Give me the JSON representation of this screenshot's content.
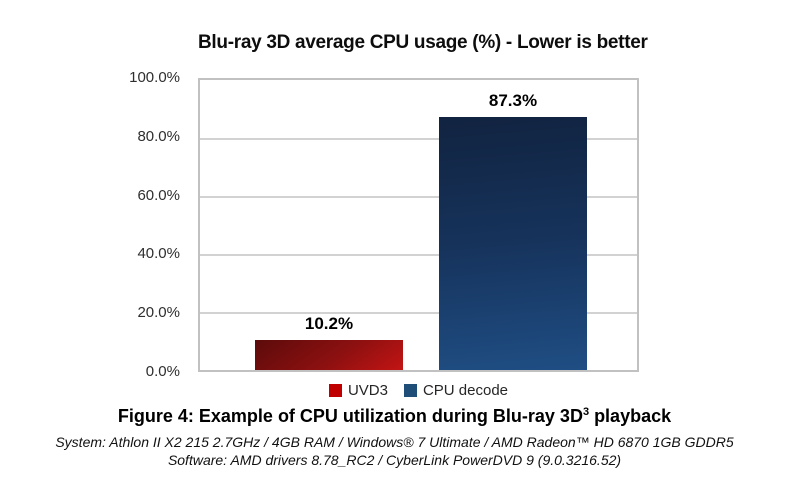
{
  "chart_data": {
    "type": "bar",
    "title": "Blu-ray 3D average CPU usage (%) - Lower is better",
    "categories": [
      "UVD3",
      "CPU decode"
    ],
    "values": [
      10.2,
      87.3
    ],
    "value_labels": [
      "10.2%",
      "87.3%"
    ],
    "xlabel": "",
    "ylabel": "",
    "ylim": [
      0,
      100
    ],
    "ytick_labels": [
      "100.0%",
      "80.0%",
      "60.0%",
      "40.0%",
      "20.0%",
      "0.0%"
    ],
    "grid": true,
    "legend_position": "bottom",
    "series_colors": [
      "#c00000",
      "#1f4e79"
    ],
    "bar_gradient_colors": [
      [
        "#5c0b0b",
        "#c31414"
      ],
      [
        "#112340",
        "#1f4e84"
      ]
    ],
    "plot_border_color": "#c1c1c1",
    "gridline_color": "#d2d2d2"
  },
  "legend": {
    "items": [
      {
        "label": "UVD3",
        "color": "#c00000"
      },
      {
        "label": "CPU decode",
        "color": "#1f4e79"
      }
    ]
  },
  "caption": {
    "before_sup": "Figure 4: Example of CPU utilization during Blu-ray 3D",
    "sup": "3",
    "after_sup": " playback"
  },
  "footnotes": {
    "system": "System: Athlon II X2 215 2.7GHz / 4GB RAM / Windows® 7 Ultimate / AMD Radeon™ HD 6870 1GB GDDR5",
    "software": "Software: AMD drivers 8.78_RC2 / CyberLink PowerDVD 9 (9.0.3216.52)"
  }
}
